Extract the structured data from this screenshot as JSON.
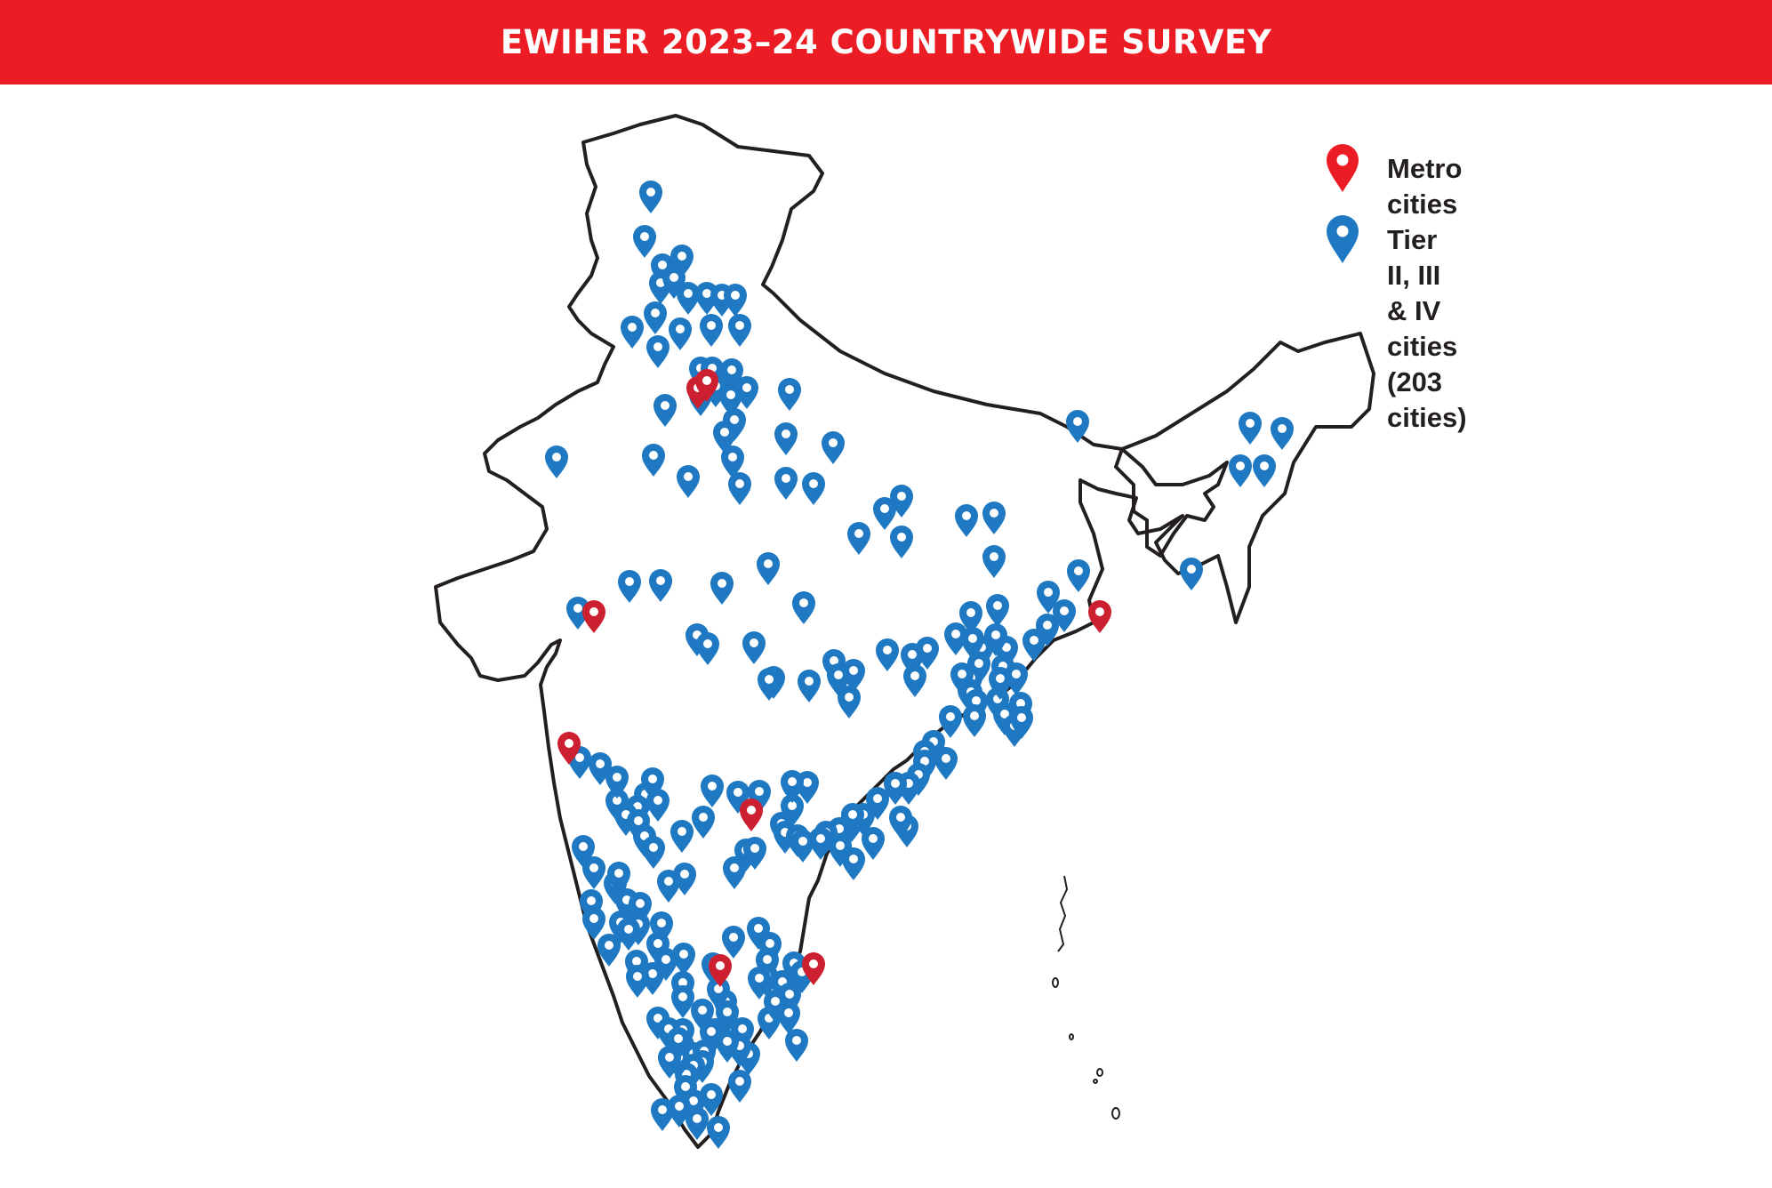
{
  "banner": {
    "title": "EWIHER 2023–24 COUNTRYWIDE SURVEY"
  },
  "legend": {
    "metro": {
      "label": "Metro cities",
      "color": "#cc1f2f"
    },
    "tier": {
      "label": "Tier II, III & IV cities",
      "sublabel": "(203 cities)",
      "color": "#1e78c2"
    }
  },
  "map": {
    "region": "India",
    "icon": "map-pin-icon"
  }
}
